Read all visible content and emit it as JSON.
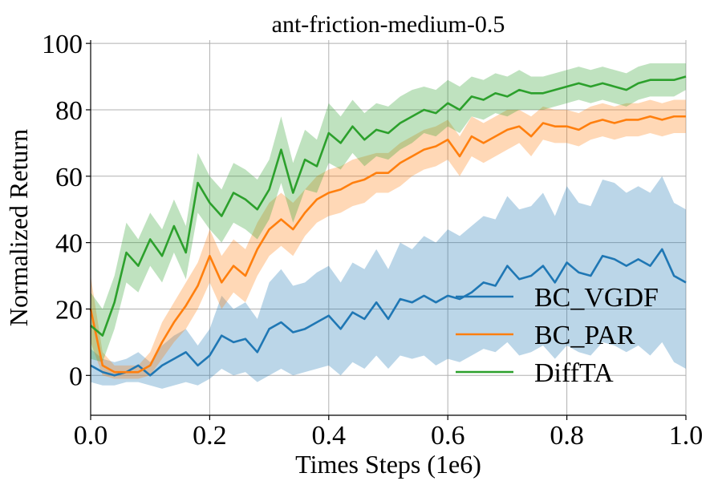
{
  "chart_data": {
    "type": "line",
    "title": "ant-friction-medium-0.5",
    "xlabel": "Times Steps (1e6)",
    "ylabel": "Normalized Return",
    "xlim": [
      0,
      1.0
    ],
    "ylim": [
      -12,
      101
    ],
    "xticks": [
      0.0,
      0.2,
      0.4,
      0.6,
      0.8,
      1.0
    ],
    "xtick_labels": [
      "0.0",
      "0.2",
      "0.4",
      "0.6",
      "0.8",
      "1.0"
    ],
    "yticks": [
      0,
      20,
      40,
      60,
      80,
      100
    ],
    "ytick_labels": [
      "0",
      "20",
      "40",
      "60",
      "80",
      "100"
    ],
    "grid": true,
    "legend_position": "lower-right",
    "series": [
      {
        "name": "BC_VGDF",
        "color": "#1f77b4",
        "x": [
          0.0,
          0.02,
          0.04,
          0.06,
          0.08,
          0.1,
          0.12,
          0.14,
          0.16,
          0.18,
          0.2,
          0.22,
          0.24,
          0.26,
          0.28,
          0.3,
          0.32,
          0.34,
          0.36,
          0.38,
          0.4,
          0.42,
          0.44,
          0.46,
          0.48,
          0.5,
          0.52,
          0.54,
          0.56,
          0.58,
          0.6,
          0.62,
          0.64,
          0.66,
          0.68,
          0.7,
          0.72,
          0.74,
          0.76,
          0.78,
          0.8,
          0.82,
          0.84,
          0.86,
          0.88,
          0.9,
          0.92,
          0.94,
          0.96,
          0.98,
          1.0
        ],
        "values": [
          3,
          1,
          0,
          1,
          3,
          0,
          3,
          5,
          7,
          3,
          6,
          12,
          10,
          11,
          7,
          14,
          16,
          13,
          14,
          16,
          18,
          14,
          19,
          17,
          22,
          17,
          23,
          22,
          24,
          22,
          24,
          23,
          25,
          28,
          27,
          33,
          29,
          30,
          33,
          28,
          34,
          31,
          30,
          36,
          35,
          33,
          35,
          33,
          38,
          30,
          28
        ],
        "lower": [
          -2,
          -3,
          -3,
          -2,
          -2,
          -3,
          -4,
          -3,
          -2,
          -3,
          -1,
          2,
          0,
          1,
          -2,
          0,
          2,
          0,
          1,
          2,
          3,
          0,
          4,
          2,
          6,
          2,
          6,
          5,
          6,
          3,
          5,
          4,
          6,
          8,
          7,
          10,
          6,
          7,
          9,
          5,
          9,
          7,
          6,
          10,
          9,
          7,
          9,
          6,
          10,
          4,
          2
        ],
        "upper": [
          8,
          5,
          4,
          5,
          7,
          4,
          9,
          12,
          14,
          9,
          14,
          24,
          20,
          22,
          17,
          28,
          32,
          27,
          28,
          31,
          33,
          28,
          34,
          32,
          38,
          32,
          40,
          38,
          42,
          40,
          44,
          42,
          45,
          48,
          47,
          54,
          50,
          51,
          55,
          48,
          57,
          52,
          51,
          59,
          58,
          55,
          57,
          55,
          60,
          52,
          50
        ]
      },
      {
        "name": "BC_PAR",
        "color": "#ff7f0e",
        "x": [
          0.0,
          0.02,
          0.04,
          0.06,
          0.08,
          0.1,
          0.12,
          0.14,
          0.16,
          0.18,
          0.2,
          0.22,
          0.24,
          0.26,
          0.28,
          0.3,
          0.32,
          0.34,
          0.36,
          0.38,
          0.4,
          0.42,
          0.44,
          0.46,
          0.48,
          0.5,
          0.52,
          0.54,
          0.56,
          0.58,
          0.6,
          0.62,
          0.64,
          0.66,
          0.68,
          0.7,
          0.72,
          0.74,
          0.76,
          0.78,
          0.8,
          0.82,
          0.84,
          0.86,
          0.88,
          0.9,
          0.92,
          0.94,
          0.96,
          0.98,
          1.0
        ],
        "values": [
          20,
          3,
          1,
          1,
          1,
          3,
          10,
          16,
          21,
          27,
          36,
          28,
          33,
          30,
          38,
          44,
          47,
          44,
          49,
          53,
          55,
          56,
          58,
          59,
          61,
          61,
          64,
          66,
          68,
          69,
          71,
          66,
          72,
          70,
          72,
          74,
          75,
          72,
          76,
          75,
          75,
          74,
          76,
          77,
          76,
          77,
          77,
          78,
          77,
          78,
          78
        ],
        "lower": [
          10,
          0,
          -1,
          -1,
          -1,
          0,
          5,
          10,
          14,
          20,
          28,
          20,
          25,
          22,
          30,
          36,
          39,
          36,
          42,
          46,
          48,
          49,
          51,
          52,
          55,
          55,
          57,
          60,
          62,
          63,
          65,
          60,
          66,
          64,
          66,
          68,
          70,
          66,
          71,
          70,
          70,
          69,
          71,
          72,
          71,
          72,
          72,
          73,
          72,
          73,
          73
        ],
        "upper": [
          30,
          7,
          3,
          3,
          3,
          7,
          16,
          22,
          28,
          34,
          44,
          36,
          41,
          38,
          46,
          52,
          55,
          52,
          56,
          60,
          62,
          63,
          65,
          66,
          67,
          67,
          70,
          72,
          74,
          75,
          77,
          72,
          78,
          76,
          78,
          80,
          80,
          78,
          81,
          80,
          80,
          79,
          81,
          82,
          81,
          82,
          82,
          83,
          82,
          83,
          83
        ]
      },
      {
        "name": "DiffTA",
        "color": "#2ca02c",
        "x": [
          0.0,
          0.02,
          0.04,
          0.06,
          0.08,
          0.1,
          0.12,
          0.14,
          0.16,
          0.18,
          0.2,
          0.22,
          0.24,
          0.26,
          0.28,
          0.3,
          0.32,
          0.34,
          0.36,
          0.38,
          0.4,
          0.42,
          0.44,
          0.46,
          0.48,
          0.5,
          0.52,
          0.54,
          0.56,
          0.58,
          0.6,
          0.62,
          0.64,
          0.66,
          0.68,
          0.7,
          0.72,
          0.74,
          0.76,
          0.78,
          0.8,
          0.82,
          0.84,
          0.86,
          0.88,
          0.9,
          0.92,
          0.94,
          0.96,
          0.98,
          1.0
        ],
        "values": [
          15,
          12,
          22,
          37,
          33,
          41,
          36,
          45,
          37,
          58,
          52,
          48,
          55,
          53,
          50,
          56,
          68,
          55,
          65,
          63,
          73,
          70,
          75,
          71,
          74,
          73,
          76,
          78,
          80,
          79,
          82,
          80,
          84,
          83,
          85,
          84,
          86,
          85,
          85,
          86,
          87,
          88,
          87,
          88,
          87,
          86,
          88,
          89,
          89,
          89,
          90
        ],
        "lower": [
          5,
          4,
          14,
          28,
          25,
          33,
          28,
          37,
          29,
          49,
          44,
          40,
          46,
          44,
          41,
          47,
          58,
          46,
          56,
          55,
          64,
          62,
          67,
          63,
          66,
          65,
          68,
          70,
          73,
          72,
          75,
          73,
          78,
          77,
          79,
          78,
          80,
          80,
          80,
          81,
          82,
          83,
          82,
          83,
          82,
          81,
          83,
          84,
          84,
          84,
          86
        ],
        "upper": [
          25,
          20,
          30,
          46,
          41,
          49,
          44,
          53,
          45,
          67,
          60,
          56,
          64,
          62,
          59,
          65,
          78,
          64,
          74,
          71,
          82,
          78,
          83,
          79,
          82,
          81,
          84,
          86,
          87,
          86,
          89,
          87,
          90,
          89,
          91,
          90,
          92,
          90,
          90,
          91,
          92,
          93,
          92,
          93,
          92,
          91,
          93,
          94,
          94,
          94,
          94
        ]
      }
    ]
  }
}
